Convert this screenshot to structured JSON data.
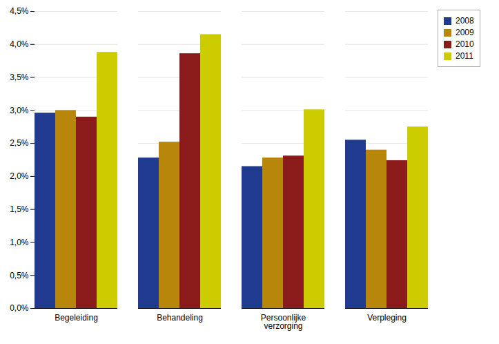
{
  "chart_data": {
    "type": "bar",
    "categories": [
      "Begeleiding",
      "Behandeling",
      "Persoonlijke\nverzorging",
      "Verpleging"
    ],
    "series": [
      {
        "name": "2008",
        "color": "#1F3A8F",
        "values": [
          0.0296,
          0.0228,
          0.0215,
          0.0255
        ]
      },
      {
        "name": "2009",
        "color": "#B8860B",
        "values": [
          0.03,
          0.0252,
          0.0228,
          0.024
        ]
      },
      {
        "name": "2010",
        "color": "#8B1A1A",
        "values": [
          0.029,
          0.0386,
          0.0231,
          0.0224
        ]
      },
      {
        "name": "2011",
        "color": "#CCCC00",
        "values": [
          0.0388,
          0.0415,
          0.0301,
          0.0275
        ]
      }
    ],
    "ylim": [
      0,
      0.045
    ],
    "yticks": [
      {
        "value": 0.0,
        "label": "0,0%"
      },
      {
        "value": 0.005,
        "label": "0,5%"
      },
      {
        "value": 0.01,
        "label": "1,0%"
      },
      {
        "value": 0.015,
        "label": "1,5%"
      },
      {
        "value": 0.02,
        "label": "2,0%"
      },
      {
        "value": 0.025,
        "label": "2,5%"
      },
      {
        "value": 0.03,
        "label": "3,0%"
      },
      {
        "value": 0.035,
        "label": "3,5%"
      },
      {
        "value": 0.04,
        "label": "4,0%"
      },
      {
        "value": 0.045,
        "label": "4,5%"
      }
    ],
    "grid": true,
    "legend": "upper right"
  }
}
